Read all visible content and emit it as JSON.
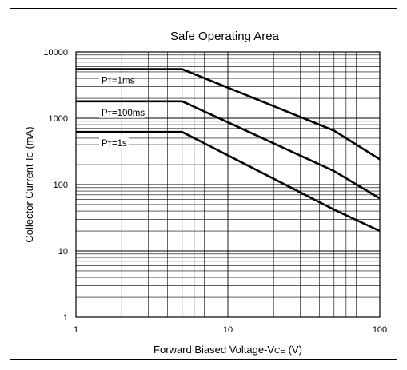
{
  "chart_data": {
    "type": "line",
    "title": "Safe Operating Area",
    "xlabel": "Forward Biased Voltage-VCE (V)",
    "ylabel": "Collector Current-IC (mA)",
    "x_scale": "log",
    "y_scale": "log",
    "xlim": [
      1,
      100
    ],
    "ylim": [
      1,
      10000
    ],
    "grid": true,
    "x_ticks": [
      {
        "value": 1,
        "label": "1"
      },
      {
        "value": 10,
        "label": "10"
      },
      {
        "value": 100,
        "label": "100"
      }
    ],
    "y_ticks": [
      {
        "value": 1,
        "label": "1"
      },
      {
        "value": 10,
        "label": "10"
      },
      {
        "value": 100,
        "label": "100"
      },
      {
        "value": 1000,
        "label": "1000"
      },
      {
        "value": 10000,
        "label": "10000"
      }
    ],
    "series": [
      {
        "name": "PT=1ms",
        "label_sub": "T",
        "label_pre": "P",
        "label_post": "=1ms",
        "points": [
          [
            1,
            5500
          ],
          [
            5,
            5500
          ],
          [
            50,
            650
          ],
          [
            100,
            240
          ]
        ]
      },
      {
        "name": "PT=100ms",
        "label_sub": "T",
        "label_pre": "P",
        "label_post": "=100ms",
        "points": [
          [
            1,
            1800
          ],
          [
            5,
            1800
          ],
          [
            50,
            160
          ],
          [
            100,
            62
          ]
        ]
      },
      {
        "name": "PT=1s",
        "label_sub": "T",
        "label_pre": "P",
        "label_post": "=1s",
        "points": [
          [
            1,
            620
          ],
          [
            5,
            620
          ],
          [
            50,
            42
          ],
          [
            100,
            20
          ]
        ]
      }
    ]
  }
}
